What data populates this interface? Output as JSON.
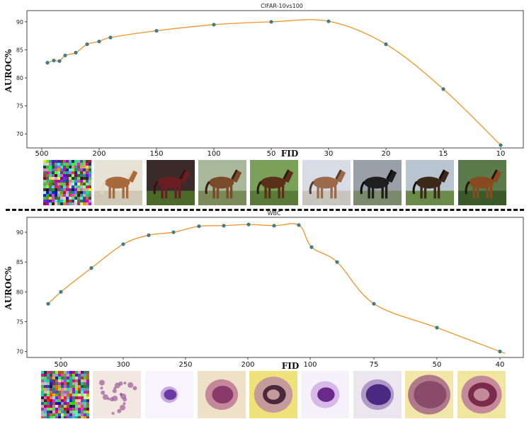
{
  "chart_data": [
    {
      "type": "line",
      "title": "CIFAR-10vs100",
      "xlabel": "FID",
      "ylabel": "AUROC%",
      "ylim": [
        67.5,
        92
      ],
      "y_ticks": [
        70,
        75,
        80,
        85,
        90
      ],
      "x_ticks": [
        "500",
        "200",
        "150",
        "100",
        "50",
        "30",
        "20",
        "15",
        "10"
      ],
      "x": [
        480,
        450,
        430,
        400,
        350,
        300,
        250,
        200,
        150,
        100,
        50,
        30,
        20,
        15,
        10
      ],
      "values": [
        82.7,
        83.1,
        83.0,
        84.0,
        84.5,
        86.0,
        86.5,
        87.2,
        88.4,
        89.5,
        90.0,
        90.1,
        86.0,
        78.0,
        68.0
      ],
      "color": "#f0952a",
      "marker_color": "#3f7d8c",
      "grid": false,
      "thumbnails": [
        "noise",
        "horse-light",
        "horse-dark",
        "horse-brown",
        "horse-head",
        "horse-pale",
        "horse-black",
        "horse-rider",
        "horse-bay"
      ]
    },
    {
      "type": "line",
      "title": "WBC",
      "xlabel": "FID",
      "ylabel": "AUROC%",
      "ylim": [
        69,
        92.5
      ],
      "y_ticks": [
        70,
        75,
        80,
        85,
        90
      ],
      "x_ticks": [
        "500",
        "300",
        "250",
        "200",
        "100",
        "75",
        "50",
        "40"
      ],
      "x": [
        550,
        500,
        400,
        300,
        275,
        250,
        225,
        210,
        200,
        175,
        150,
        125,
        100,
        90,
        75,
        50,
        40
      ],
      "values": [
        78.0,
        80.0,
        84.0,
        88.0,
        89.5,
        90.0,
        91.0,
        91.1,
        91.3,
        91.1,
        91.2,
        87.5,
        85.0,
        78.0,
        74.0,
        70.0,
        70.0
      ],
      "color": "#f0952a",
      "marker_color": "#3f7d8c",
      "grid": false,
      "thumbnails": [
        "noise",
        "cell-faint",
        "cell-small",
        "cell-speckled",
        "cell-yellow",
        "cell-purple",
        "cell-dark",
        "cell-large",
        "cell-ring"
      ]
    }
  ]
}
